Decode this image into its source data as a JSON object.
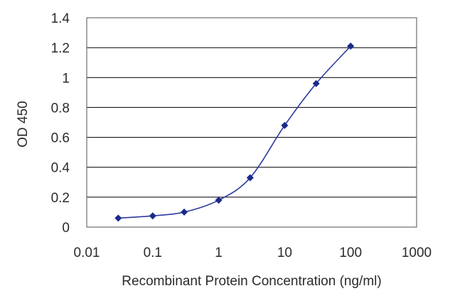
{
  "chart_data": {
    "type": "line",
    "title": "",
    "xlabel": "Recombinant Protein Concentration (ng/ml)",
    "ylabel": "OD 450",
    "x_scale": "log",
    "xlim": [
      0.01,
      1000
    ],
    "ylim": [
      0,
      1.4
    ],
    "x_ticks": [
      0.01,
      0.1,
      1,
      10,
      100,
      1000
    ],
    "x_tick_labels": [
      "0.01",
      "0.1",
      "1",
      "10",
      "100",
      "1000"
    ],
    "y_ticks": [
      0,
      0.2,
      0.4,
      0.6,
      0.8,
      1,
      1.2,
      1.4
    ],
    "y_tick_labels": [
      "0",
      "0.2",
      "0.4",
      "0.6",
      "0.8",
      "1",
      "1.2",
      "1.4"
    ],
    "grid": "horizontal",
    "legend": "none",
    "series": [
      {
        "x": [
          0.03,
          0.1,
          0.3,
          1,
          3,
          10,
          30,
          100
        ],
        "y": [
          0.06,
          0.075,
          0.1,
          0.18,
          0.33,
          0.68,
          0.96,
          1.21
        ],
        "color": "#2b3a9e",
        "marker": "diamond",
        "marker_color": "#1a2a8a"
      }
    ],
    "grid_color": "#1a1a1a",
    "axis_color": "#555555"
  }
}
